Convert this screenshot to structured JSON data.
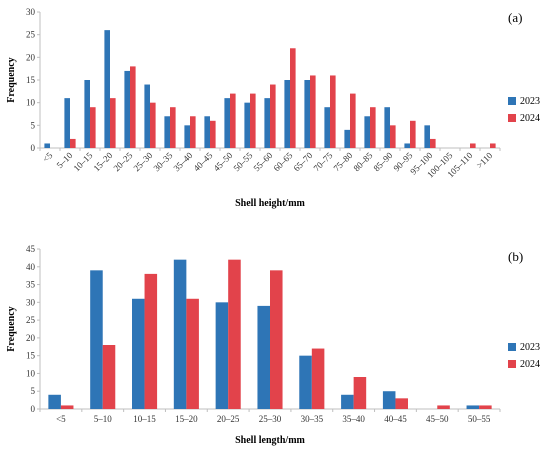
{
  "colors": {
    "2023": "#2E75B6",
    "2024": "#E2434B"
  },
  "chart_data": [
    {
      "type": "bar",
      "panel_label": "(a)",
      "xlabel": "Shell height/mm",
      "ylabel": "Frequency",
      "ylim": [
        0,
        30
      ],
      "yticks": [
        0,
        5,
        10,
        15,
        20,
        25,
        30
      ],
      "legend_position": "right",
      "grid": false,
      "categories": [
        "<5",
        "5–10",
        "10–15",
        "15–20",
        "20–25",
        "25–30",
        "30–35",
        "35–40",
        "40–45",
        "45–50",
        "50–55",
        "55–60",
        "60–65",
        "65–70",
        "70–75",
        "75–80",
        "80–85",
        "85–90",
        "90–95",
        "95–100",
        "100–105",
        "105–110",
        ">110"
      ],
      "series": [
        {
          "name": "2023",
          "values": [
            1,
            11,
            15,
            26,
            17,
            14,
            7,
            5,
            7,
            11,
            10,
            11,
            15,
            15,
            9,
            4,
            7,
            9,
            1,
            5,
            0,
            0,
            0
          ]
        },
        {
          "name": "2024",
          "values": [
            0,
            2,
            9,
            11,
            18,
            10,
            9,
            7,
            6,
            12,
            12,
            14,
            22,
            16,
            16,
            12,
            9,
            5,
            6,
            2,
            0,
            1,
            1
          ]
        }
      ]
    },
    {
      "type": "bar",
      "panel_label": "(b)",
      "xlabel": "Shell length/mm",
      "ylabel": "Frequency",
      "ylim": [
        0,
        45
      ],
      "yticks": [
        0,
        5,
        10,
        15,
        20,
        25,
        30,
        35,
        40,
        45
      ],
      "legend_position": "right",
      "grid": false,
      "categories": [
        "<5",
        "5–10",
        "10–15",
        "15–20",
        "20–25",
        "25–30",
        "30–35",
        "35–40",
        "40–45",
        "45–50",
        "50–55"
      ],
      "series": [
        {
          "name": "2023",
          "values": [
            4,
            39,
            31,
            42,
            30,
            29,
            15,
            4,
            5,
            0,
            1
          ]
        },
        {
          "name": "2024",
          "values": [
            1,
            18,
            38,
            31,
            42,
            39,
            17,
            9,
            3,
            1,
            1
          ]
        }
      ]
    }
  ]
}
